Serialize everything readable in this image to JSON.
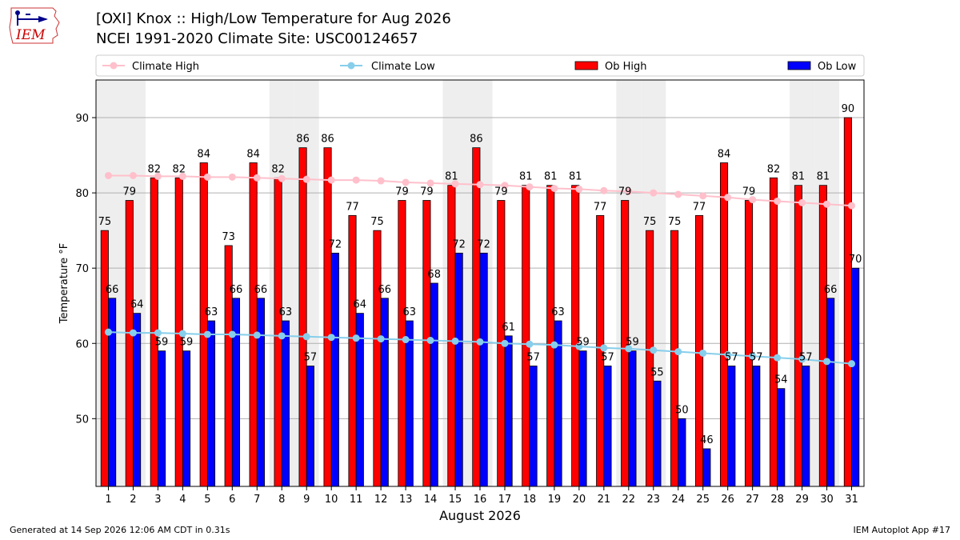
{
  "header": {
    "title_line1": "[OXI] Knox :: High/Low Temperature for Aug 2026",
    "title_line2": "NCEI 1991-2020 Climate Site: USC00124657"
  },
  "logo": {
    "text": "IEM",
    "icon": "iem-iowa-logo"
  },
  "footer": {
    "generated": "Generated at 14 Sep 2026 12:06 AM CDT in 0.31s",
    "app": "IEM Autoplot App #17"
  },
  "colors": {
    "ob_high": "#ff0000",
    "ob_low": "#0000ff",
    "climate_high": "#ffc0cb",
    "climate_low": "#87ceeb",
    "weekend_shade": "#eeeeee",
    "grid": "#b0b0b0"
  },
  "chart_data": {
    "type": "bar",
    "xlabel": "August 2026",
    "ylabel": "Temperature °F",
    "ylim": [
      41,
      95
    ],
    "yticks": [
      50,
      60,
      70,
      80,
      90
    ],
    "grid": true,
    "legend_placement": "top",
    "categories": [
      "1",
      "2",
      "3",
      "4",
      "5",
      "6",
      "7",
      "8",
      "9",
      "10",
      "11",
      "12",
      "13",
      "14",
      "15",
      "16",
      "17",
      "18",
      "19",
      "20",
      "21",
      "22",
      "23",
      "24",
      "25",
      "26",
      "27",
      "28",
      "29",
      "30",
      "31"
    ],
    "shaded_days": [
      1,
      2,
      8,
      9,
      15,
      16,
      22,
      23,
      29,
      30
    ],
    "series": [
      {
        "name": "Ob High",
        "kind": "bar",
        "values": [
          75,
          79,
          82,
          82,
          84,
          73,
          84,
          82,
          86,
          86,
          77,
          75,
          79,
          79,
          81,
          86,
          79,
          81,
          81,
          81,
          77,
          79,
          75,
          75,
          77,
          84,
          79,
          82,
          81,
          81,
          90
        ]
      },
      {
        "name": "Ob Low",
        "kind": "bar",
        "values": [
          66,
          64,
          59,
          59,
          63,
          66,
          66,
          63,
          57,
          72,
          64,
          66,
          63,
          68,
          72,
          72,
          61,
          57,
          63,
          59,
          57,
          59,
          55,
          50,
          46,
          57,
          57,
          54,
          57,
          66,
          70
        ]
      },
      {
        "name": "Climate High",
        "kind": "line",
        "values": [
          82.3,
          82.3,
          82.2,
          82.2,
          82.1,
          82.1,
          82.0,
          81.9,
          81.8,
          81.7,
          81.7,
          81.6,
          81.4,
          81.3,
          81.2,
          81.1,
          81.0,
          80.8,
          80.6,
          80.5,
          80.3,
          80.2,
          80.0,
          79.8,
          79.6,
          79.4,
          79.1,
          78.9,
          78.7,
          78.5,
          78.3
        ]
      },
      {
        "name": "Climate Low",
        "kind": "line",
        "values": [
          61.5,
          61.4,
          61.4,
          61.3,
          61.2,
          61.2,
          61.1,
          61.0,
          60.9,
          60.8,
          60.7,
          60.6,
          60.5,
          60.4,
          60.3,
          60.2,
          60.0,
          59.9,
          59.8,
          59.6,
          59.4,
          59.3,
          59.1,
          58.9,
          58.7,
          58.5,
          58.3,
          58.1,
          57.9,
          57.6,
          57.3
        ]
      }
    ]
  }
}
